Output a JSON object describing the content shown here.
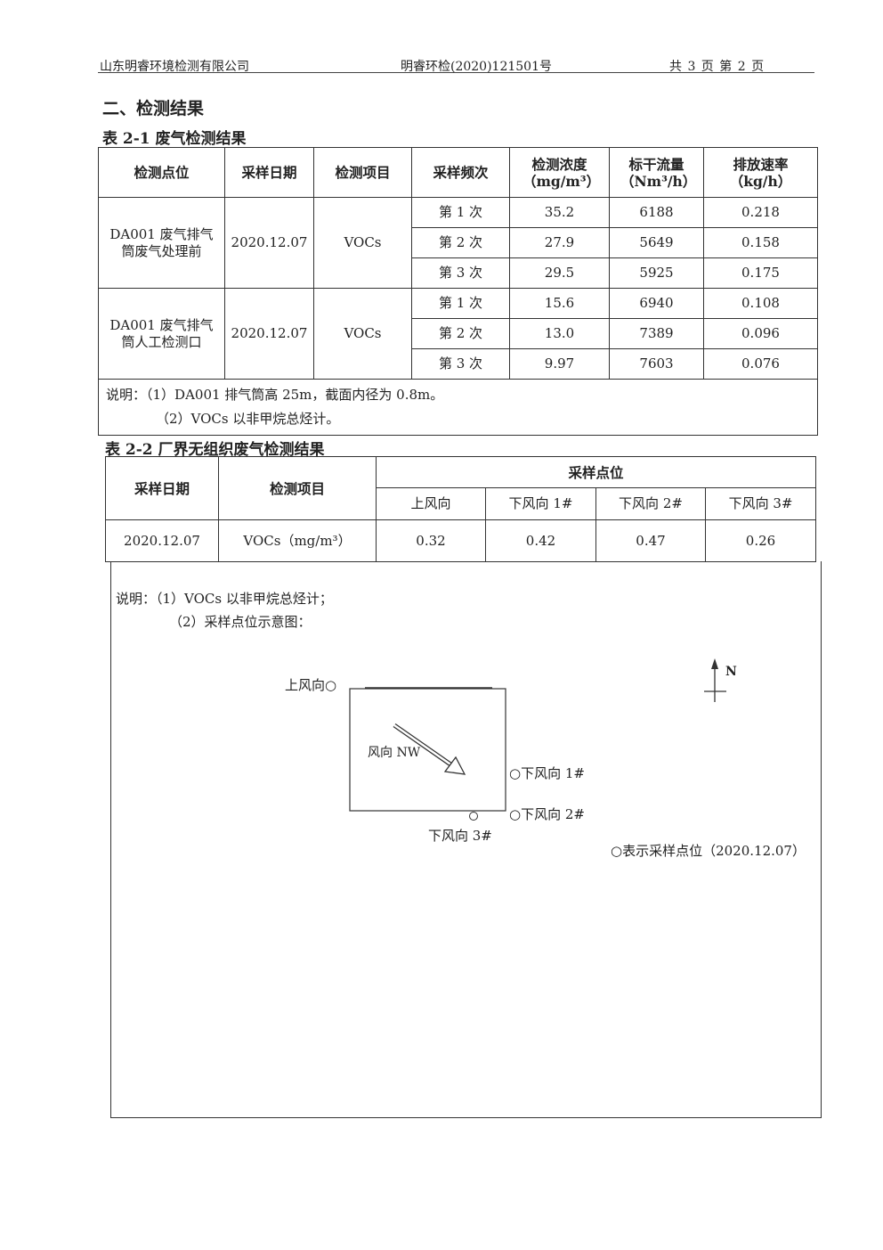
{
  "header": {
    "company": "山东明睿环境检测有限公司",
    "report_no": "明睿环检(2020)121501号",
    "page_info": "共 3 页 第 2 页"
  },
  "section_title": "二、检测结果",
  "table1": {
    "caption": "表 2-1 废气检测结果",
    "headers": [
      "检测点位",
      "采样日期",
      "检测项目",
      "采样频次",
      "检测浓度（mg/m³）",
      "标干流量（Nm³/h）",
      "排放速率（kg/h）"
    ],
    "groups": [
      {
        "point": "DA001 废气排气筒废气处理前",
        "date": "2020.12.07",
        "item": "VOCs",
        "rows": [
          {
            "freq": "第 1 次",
            "conc": "35.2",
            "flow": "6188",
            "rate": "0.218"
          },
          {
            "freq": "第 2 次",
            "conc": "27.9",
            "flow": "5649",
            "rate": "0.158"
          },
          {
            "freq": "第 3 次",
            "conc": "29.5",
            "flow": "5925",
            "rate": "0.175"
          }
        ]
      },
      {
        "point": "DA001 废气排气筒人工检测口",
        "date": "2020.12.07",
        "item": "VOCs",
        "rows": [
          {
            "freq": "第 1 次",
            "conc": "15.6",
            "flow": "6940",
            "rate": "0.108"
          },
          {
            "freq": "第 2 次",
            "conc": "13.0",
            "flow": "7389",
            "rate": "0.096"
          },
          {
            "freq": "第 3 次",
            "conc": "9.97",
            "flow": "7603",
            "rate": "0.076"
          }
        ]
      }
    ],
    "notes": [
      "说明：（1）DA001 排气筒高 25m，截面内径为 0.8m。",
      "（2）VOCs 以非甲烷总烃计。"
    ]
  },
  "table2": {
    "caption": "表 2-2 厂界无组织废气检测结果",
    "headers": {
      "date": "采样日期",
      "item": "检测项目",
      "points_group": "采样点位",
      "points": [
        "上风向",
        "下风向 1#",
        "下风向 2#",
        "下风向 3#"
      ]
    },
    "row": {
      "date": "2020.12.07",
      "item": "VOCs（mg/m³）",
      "values": [
        "0.32",
        "0.42",
        "0.47",
        "0.26"
      ]
    },
    "notes": [
      "说明：（1）VOCs 以非甲烷总烃计；",
      "（2）采样点位示意图："
    ]
  },
  "diagram": {
    "upwind": "上风向○",
    "wind": "风向 NW",
    "down1": "○下风向 1#",
    "down2": "○下风向 2#",
    "down3": "下风向 3#",
    "north": "N",
    "legend": "○表示采样点位（2020.12.07）"
  }
}
